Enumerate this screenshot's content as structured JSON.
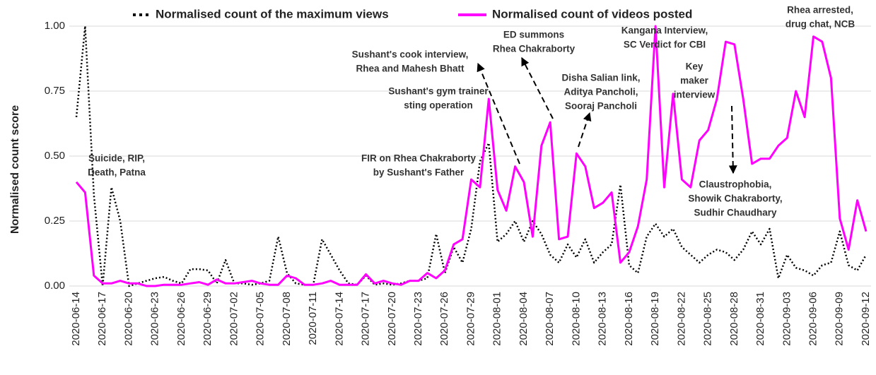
{
  "chart_data": {
    "type": "line",
    "ylabel": "Normalised count score",
    "categories": [
      "2020-06-14",
      null,
      null,
      "2020-06-17",
      null,
      null,
      "2020-06-20",
      null,
      null,
      "2020-06-23",
      null,
      null,
      "2020-06-26",
      null,
      null,
      "2020-06-29",
      null,
      null,
      "2020-07-02",
      null,
      null,
      "2020-07-05",
      null,
      null,
      "2020-07-08",
      null,
      null,
      "2020-07-11",
      null,
      null,
      "2020-07-14",
      null,
      null,
      "2020-07-17",
      null,
      null,
      "2020-07-20",
      null,
      null,
      "2020-07-23",
      null,
      null,
      "2020-07-26",
      null,
      null,
      "2020-07-29",
      null,
      null,
      "2020-08-01",
      null,
      null,
      "2020-08-04",
      null,
      null,
      "2020-08-07",
      null,
      null,
      "2020-08-10",
      null,
      null,
      "2020-08-13",
      null,
      null,
      "2020-08-16",
      null,
      null,
      "2020-08-19",
      null,
      null,
      "2020-08-22",
      null,
      null,
      "2020-08-25",
      null,
      null,
      "2020-08-28",
      null,
      null,
      "2020-08-31",
      null,
      null,
      "2020-09-03",
      null,
      null,
      "2020-09-06",
      null,
      null,
      "2020-09-09",
      null,
      null,
      "2020-09-12"
    ],
    "series": [
      {
        "name": "Normalised count of the maximum views",
        "color": "#000000",
        "dash": true,
        "values": [
          0.65,
          1.0,
          0.35,
          0.0,
          0.38,
          0.25,
          0.0,
          0.01,
          0.02,
          0.03,
          0.035,
          0.02,
          0.01,
          0.065,
          0.065,
          0.06,
          0.01,
          0.1,
          0.01,
          0.01,
          0.005,
          0.01,
          0.02,
          0.19,
          0.05,
          0.01,
          0.005,
          0.005,
          0.18,
          0.12,
          0.06,
          0.01,
          0.005,
          0.04,
          0.005,
          0.01,
          0.005,
          0.01,
          0.02,
          0.02,
          0.03,
          0.2,
          0.05,
          0.15,
          0.09,
          0.22,
          0.48,
          0.55,
          0.17,
          0.2,
          0.25,
          0.17,
          0.25,
          0.2,
          0.12,
          0.09,
          0.16,
          0.11,
          0.18,
          0.09,
          0.13,
          0.16,
          0.39,
          0.08,
          0.05,
          0.19,
          0.24,
          0.19,
          0.22,
          0.15,
          0.12,
          0.09,
          0.12,
          0.14,
          0.13,
          0.1,
          0.14,
          0.21,
          0.16,
          0.22,
          0.03,
          0.12,
          0.07,
          0.06,
          0.04,
          0.08,
          0.09,
          0.21,
          0.08,
          0.06,
          0.12
        ]
      },
      {
        "name": "Normalised count of videos posted",
        "color": "#ff00ff",
        "dash": false,
        "values": [
          0.4,
          0.36,
          0.04,
          0.01,
          0.01,
          0.02,
          0.01,
          0.01,
          0.0,
          0.0,
          0.005,
          0.005,
          0.005,
          0.01,
          0.015,
          0.005,
          0.025,
          0.01,
          0.01,
          0.015,
          0.02,
          0.01,
          0.005,
          0.005,
          0.04,
          0.03,
          0.005,
          0.005,
          0.01,
          0.02,
          0.005,
          0.005,
          0.005,
          0.045,
          0.01,
          0.02,
          0.01,
          0.005,
          0.02,
          0.02,
          0.05,
          0.03,
          0.06,
          0.16,
          0.18,
          0.41,
          0.38,
          0.72,
          0.37,
          0.29,
          0.46,
          0.4,
          0.19,
          0.54,
          0.63,
          0.18,
          0.19,
          0.51,
          0.46,
          0.3,
          0.32,
          0.36,
          0.09,
          0.13,
          0.23,
          0.41,
          1.0,
          0.38,
          0.74,
          0.41,
          0.38,
          0.56,
          0.6,
          0.72,
          0.94,
          0.93,
          0.72,
          0.47,
          0.49,
          0.49,
          0.54,
          0.57,
          0.75,
          0.65,
          0.96,
          0.94,
          0.8,
          0.26,
          0.14,
          0.33,
          0.21
        ]
      }
    ],
    "ylim": [
      0,
      1
    ],
    "yticks": [
      {
        "value": 0,
        "label": "0.00"
      },
      {
        "value": 0.25,
        "label": "0.25"
      },
      {
        "value": 0.5,
        "label": "0.50"
      },
      {
        "value": 0.75,
        "label": "0.75"
      },
      {
        "value": 1,
        "label": "1.00"
      }
    ],
    "grid": true,
    "legend": "top",
    "annotations": [
      [
        "Suicide, RIP,",
        "Death, Patna"
      ],
      [
        "FIR on Rhea Chakraborty",
        "by Sushant's Father"
      ],
      [
        "Sushant's gym trainer",
        "sting operation"
      ],
      [
        "Sushant's cook interview,",
        "Rhea and Mahesh Bhatt"
      ],
      [
        "ED summons",
        "Rhea Chakraborty"
      ],
      [
        "Disha Salian link,",
        "Aditya Pancholi,",
        "Sooraj Pancholi"
      ],
      [
        "Kangana Interview,",
        "SC Verdict for CBI"
      ],
      [
        "Key",
        "maker",
        "interview"
      ],
      [
        "Claustrophobia,",
        "Showik Chakraborty,",
        "Sudhir Chaudhary"
      ],
      [
        "Rhea arrested,",
        "drug chat, NCB"
      ]
    ]
  }
}
